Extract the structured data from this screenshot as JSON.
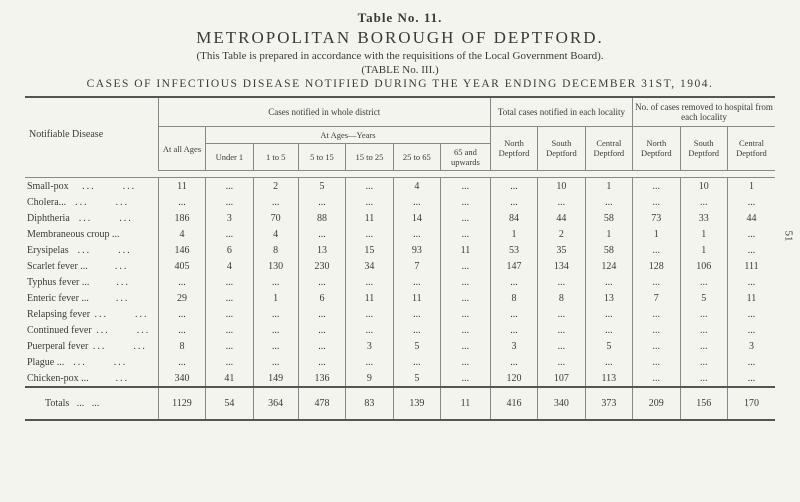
{
  "header": {
    "tableNo": "Table No. 11.",
    "title": "METROPOLITAN BOROUGH OF DEPTFORD.",
    "subtitle": "(This Table is prepared in accordance with the requisitions of the Local Government Board).",
    "tableLabel": "(TABLE No. III.)",
    "caption": "CASES OF INFECTIOUS DISEASE NOTIFIED DURING THE YEAR ENDING DECEMBER 31ST, 1904."
  },
  "pageNumber": "51",
  "columns": {
    "disease": "Notifiable Disease",
    "group1": "Cases notified in whole district",
    "atAll": "At all Ages",
    "atAges": "At Ages—Years",
    "ageBands": [
      "Under 1",
      "1 to 5",
      "5 to 15",
      "15 to 25",
      "25 to 65",
      "65 and upwards"
    ],
    "group2": "Total cases notified in each locality",
    "group3": "No. of cases removed to hospital from each locality",
    "localities": [
      "North Deptford",
      "South Deptford",
      "Central Deptford"
    ]
  },
  "rows": [
    {
      "name": "Small-pox",
      "vals": [
        "11",
        "...",
        "2",
        "5",
        "...",
        "4",
        "...",
        "...",
        "10",
        "1",
        "...",
        "10",
        "1"
      ],
      "widths": [
        3,
        3
      ]
    },
    {
      "name": "Cholera...",
      "vals": [
        "...",
        "...",
        "...",
        "...",
        "...",
        "...",
        "...",
        "...",
        "...",
        "...",
        "...",
        "...",
        "..."
      ],
      "widths": [
        2,
        3
      ]
    },
    {
      "name": "Diphtheria",
      "vals": [
        "186",
        "3",
        "70",
        "88",
        "11",
        "14",
        "...",
        "84",
        "44",
        "58",
        "73",
        "33",
        "44"
      ],
      "widths": [
        2,
        3
      ]
    },
    {
      "name": "Membraneous croup ...",
      "vals": [
        "4",
        "...",
        "4",
        "...",
        "...",
        "...",
        "...",
        "1",
        "2",
        "1",
        "1",
        "1",
        "..."
      ],
      "widths": [
        0,
        0
      ]
    },
    {
      "name": "Erysipelas",
      "vals": [
        "146",
        "6",
        "8",
        "13",
        "15",
        "93",
        "11",
        "53",
        "35",
        "58",
        "...",
        "1",
        "..."
      ],
      "widths": [
        2,
        3
      ]
    },
    {
      "name": "Scarlet fever ...",
      "vals": [
        "405",
        "4",
        "130",
        "230",
        "34",
        "7",
        "...",
        "147",
        "134",
        "124",
        "128",
        "106",
        "111"
      ],
      "widths": [
        0,
        3
      ]
    },
    {
      "name": "Typhus fever ...",
      "vals": [
        "...",
        "...",
        "...",
        "...",
        "...",
        "...",
        "...",
        "...",
        "...",
        "...",
        "...",
        "...",
        "..."
      ],
      "widths": [
        0,
        3
      ]
    },
    {
      "name": "Enteric fever ...",
      "vals": [
        "29",
        "...",
        "1",
        "6",
        "11",
        "11",
        "...",
        "8",
        "8",
        "13",
        "7",
        "5",
        "11"
      ],
      "widths": [
        0,
        3
      ]
    },
    {
      "name": "Relapsing fever",
      "vals": [
        "...",
        "...",
        "...",
        "...",
        "...",
        "...",
        "...",
        "...",
        "...",
        "...",
        "...",
        "...",
        "..."
      ],
      "widths": [
        1,
        3
      ]
    },
    {
      "name": "Continued fever",
      "vals": [
        "...",
        "...",
        "...",
        "...",
        "...",
        "...",
        "...",
        "...",
        "...",
        "...",
        "...",
        "...",
        "..."
      ],
      "widths": [
        1,
        3
      ]
    },
    {
      "name": "Puerperal fever",
      "vals": [
        "8",
        "...",
        "...",
        "...",
        "3",
        "5",
        "...",
        "3",
        "...",
        "5",
        "...",
        "...",
        "3"
      ],
      "widths": [
        1,
        3
      ]
    },
    {
      "name": "Plague ...",
      "vals": [
        "...",
        "...",
        "...",
        "...",
        "...",
        "...",
        "...",
        "...",
        "...",
        "...",
        "...",
        "...",
        "..."
      ],
      "widths": [
        2,
        3
      ]
    },
    {
      "name": "Chicken-pox ...",
      "vals": [
        "340",
        "41",
        "149",
        "136",
        "9",
        "5",
        "...",
        "120",
        "107",
        "113",
        "...",
        "...",
        "..."
      ],
      "widths": [
        0,
        3
      ]
    }
  ],
  "totals": {
    "label": "Totals",
    "vals": [
      "1129",
      "54",
      "364",
      "478",
      "83",
      "139",
      "11",
      "416",
      "340",
      "373",
      "209",
      "156",
      "170"
    ]
  }
}
